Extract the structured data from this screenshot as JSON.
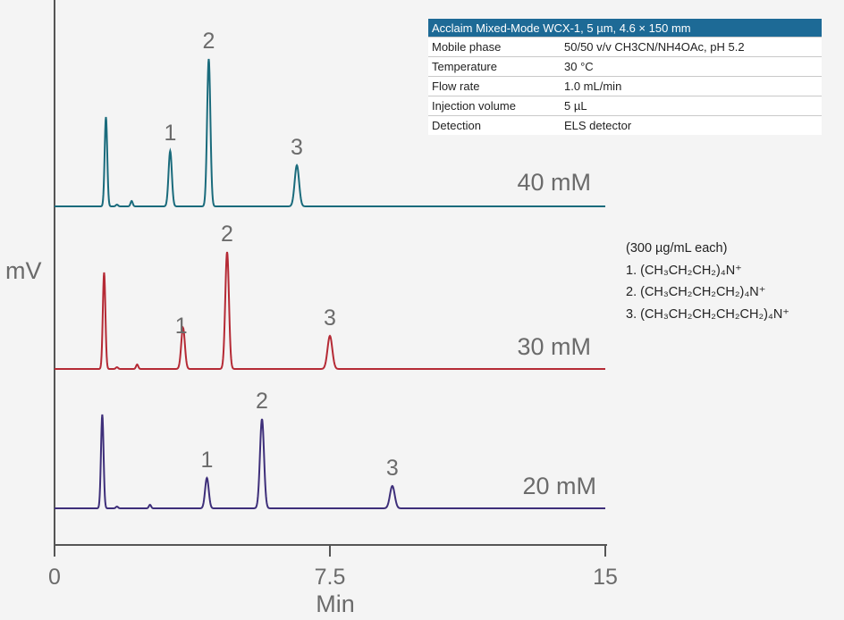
{
  "chart_data": {
    "type": "line",
    "title": "",
    "xlabel": "Min",
    "ylabel": "mV",
    "xlim": [
      0,
      15
    ],
    "xticks": [
      "0",
      "7.5",
      "15"
    ],
    "series": [
      {
        "name": "40 mM",
        "color": "#1a6b7c",
        "peaks": [
          {
            "t": 1.4,
            "h": 100,
            "w": 0.035
          },
          {
            "t": 1.7,
            "h": 2,
            "w": 0.03
          },
          {
            "t": 2.1,
            "h": 6,
            "w": 0.03
          },
          {
            "t": 3.15,
            "h": 62,
            "w": 0.045
          },
          {
            "t": 4.2,
            "h": 165,
            "w": 0.045
          },
          {
            "t": 6.6,
            "h": 46,
            "w": 0.06
          }
        ],
        "labels": [
          {
            "text": "1",
            "t": 3.15
          },
          {
            "text": "2",
            "t": 4.2
          },
          {
            "text": "3",
            "t": 6.6
          }
        ]
      },
      {
        "name": "30 mM",
        "color": "#b52a35",
        "peaks": [
          {
            "t": 1.35,
            "h": 108,
            "w": 0.035
          },
          {
            "t": 1.7,
            "h": 2,
            "w": 0.03
          },
          {
            "t": 2.25,
            "h": 5,
            "w": 0.03
          },
          {
            "t": 3.5,
            "h": 46,
            "w": 0.05
          },
          {
            "t": 4.7,
            "h": 131,
            "w": 0.05
          },
          {
            "t": 7.5,
            "h": 37,
            "w": 0.065
          }
        ],
        "labels": [
          {
            "text": "1",
            "t": 3.45
          },
          {
            "text": "2",
            "t": 4.7
          },
          {
            "text": "3",
            "t": 7.5
          }
        ]
      },
      {
        "name": "20 mM",
        "color": "#3e2f7a",
        "peaks": [
          {
            "t": 1.3,
            "h": 105,
            "w": 0.035
          },
          {
            "t": 1.7,
            "h": 2,
            "w": 0.03
          },
          {
            "t": 2.6,
            "h": 4,
            "w": 0.03
          },
          {
            "t": 4.15,
            "h": 34,
            "w": 0.05
          },
          {
            "t": 5.65,
            "h": 100,
            "w": 0.055
          },
          {
            "t": 9.2,
            "h": 25,
            "w": 0.065
          }
        ],
        "labels": [
          {
            "text": "1",
            "t": 4.15
          },
          {
            "text": "2",
            "t": 5.65
          },
          {
            "text": "3",
            "t": 9.2
          }
        ]
      }
    ]
  },
  "conditions": {
    "header": "Acclaim Mixed-Mode WCX-1, 5 µm, 4.6 × 150 mm",
    "rows": [
      {
        "label": "Mobile phase",
        "value": "50/50 v/v CH3CN/NH4OAc, pH 5.2"
      },
      {
        "label": "Temperature",
        "value": "30 °C"
      },
      {
        "label": "Flow rate",
        "value": "1.0 mL/min"
      },
      {
        "label": "Injection volume",
        "value": "5 µL"
      },
      {
        "label": "Detection",
        "value": "ELS detector"
      }
    ]
  },
  "legend": {
    "title": "(300 µg/mL each)",
    "items": [
      "1. (CH₃CH₂CH₂)₄N⁺",
      "2. (CH₃CH₂CH₂CH₂)₄N⁺",
      "3. (CH₃CH₂CH₂CH₂CH₂)₄N⁺"
    ]
  }
}
